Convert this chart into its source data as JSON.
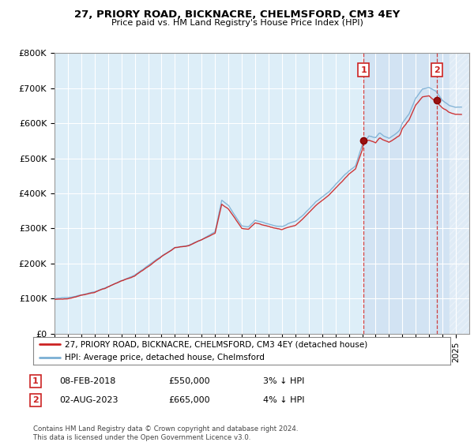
{
  "title": "27, PRIORY ROAD, BICKNACRE, CHELMSFORD, CM3 4EY",
  "subtitle": "Price paid vs. HM Land Registry's House Price Index (HPI)",
  "legend_line1": "27, PRIORY ROAD, BICKNACRE, CHELMSFORD, CM3 4EY (detached house)",
  "legend_line2": "HPI: Average price, detached house, Chelmsford",
  "ann1_label": "1",
  "ann1_date": "08-FEB-2018",
  "ann1_price": "£550,000",
  "ann1_pct": "3% ↓ HPI",
  "ann1_x": 2018.1,
  "ann1_y": 550000,
  "ann2_label": "2",
  "ann2_date": "02-AUG-2023",
  "ann2_price": "£665,000",
  "ann2_pct": "4% ↓ HPI",
  "ann2_x": 2023.58,
  "ann2_y": 665000,
  "footer": "Contains HM Land Registry data © Crown copyright and database right 2024.\nThis data is licensed under the Open Government Licence v3.0.",
  "hpi_color": "#7bafd4",
  "price_color": "#cc2222",
  "ann_color": "#cc2222",
  "bg_color": "#ddeeff",
  "plot_bg_light": "#e8f0f8",
  "plot_bg_dark": "#d0dff0",
  "ylim": [
    0,
    800000
  ],
  "xlim_start": 1995,
  "xlim_end": 2026
}
